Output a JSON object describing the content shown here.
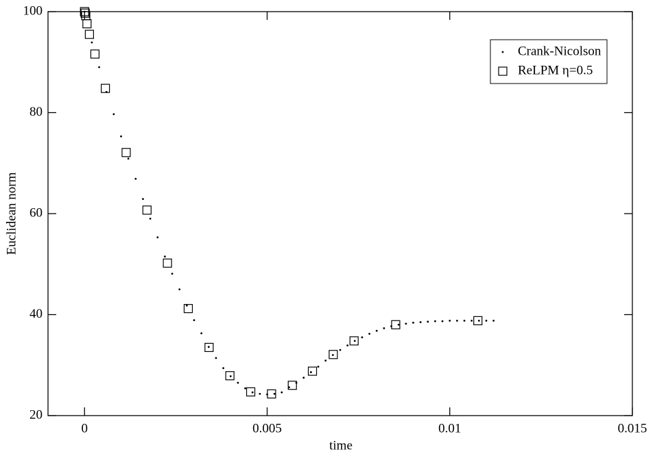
{
  "chart_data": {
    "type": "scatter",
    "x_label": "time",
    "y_label": "Euclidean norm",
    "xlim": [
      -0.001,
      0.015
    ],
    "ylim": [
      20,
      100
    ],
    "xticks": [
      0,
      0.005,
      0.01,
      0.015
    ],
    "yticks": [
      20,
      40,
      60,
      80,
      100
    ],
    "legend": "upper right",
    "series": [
      {
        "name": "Crank-Nicolson",
        "color": "#000000",
        "marker": "dot",
        "x": [
          0,
          0.0002,
          0.0004,
          0.0006,
          0.0008,
          0.001,
          0.0012,
          0.0014,
          0.0016,
          0.0018,
          0.002,
          0.0022,
          0.0024,
          0.0026,
          0.0028,
          0.003,
          0.0032,
          0.0034,
          0.0036,
          0.0038,
          0.004,
          0.0042,
          0.0044,
          0.0046,
          0.0048,
          0.005,
          0.0052,
          0.0054,
          0.0056,
          0.0058,
          0.006,
          0.0062,
          0.0064,
          0.0066,
          0.0068,
          0.007,
          0.0072,
          0.0074,
          0.0076,
          0.0078,
          0.008,
          0.0082,
          0.0084,
          0.0086,
          0.0088,
          0.009,
          0.0092,
          0.0094,
          0.0096,
          0.0098,
          0.01,
          0.0102,
          0.0104,
          0.0106,
          0.0108,
          0.011,
          0.0112
        ],
        "values": [
          100,
          93.9,
          89.0,
          84.1,
          79.7,
          75.3,
          70.9,
          66.9,
          62.9,
          59.0,
          55.3,
          51.5,
          48.1,
          45.0,
          41.8,
          38.9,
          36.3,
          33.6,
          31.4,
          29.4,
          27.8,
          26.5,
          25.4,
          24.6,
          24.3,
          24.2,
          24.3,
          24.6,
          25.6,
          26.5,
          27.5,
          28.6,
          29.7,
          30.9,
          32.0,
          33.0,
          33.9,
          34.8,
          35.5,
          36.2,
          36.8,
          37.3,
          37.7,
          38.0,
          38.2,
          38.4,
          38.5,
          38.6,
          38.7,
          38.7,
          38.8,
          38.8,
          38.8,
          38.8,
          38.8,
          38.8,
          38.8
        ]
      },
      {
        "name": "ReLPM η=0.5",
        "color": "#000000",
        "marker": "square",
        "x": [
          0,
          1.68e-05,
          3.36e-05,
          6.7e-05,
          0.000134,
          0.000285,
          0.00057,
          0.00114,
          0.00171,
          0.00227,
          0.00284,
          0.00341,
          0.00398,
          0.00455,
          0.00512,
          0.00569,
          0.00624,
          0.00681,
          0.00738,
          0.00852,
          0.01077
        ],
        "values": [
          100,
          99.7,
          99.2,
          97.6,
          95.5,
          91.6,
          84.8,
          72.1,
          60.7,
          50.2,
          41.2,
          33.5,
          27.9,
          24.7,
          24.3,
          26.0,
          28.8,
          32.1,
          34.8,
          38.0,
          38.8
        ]
      }
    ]
  }
}
